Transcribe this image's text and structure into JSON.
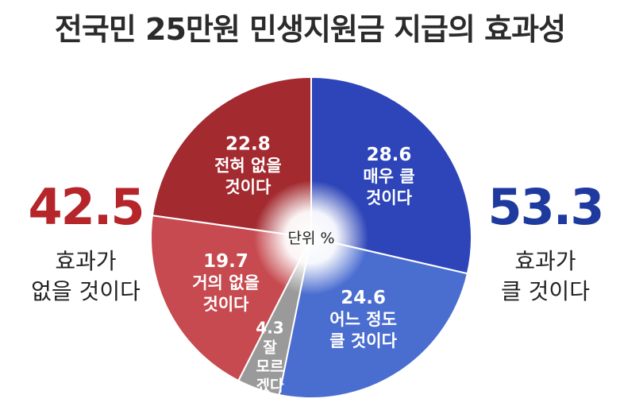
{
  "title": "전국민 25만원 민생지원금 지급의 효과성",
  "unit_label": "단위 %",
  "left_summary": {
    "value": "42.5",
    "caption_line1": "효과가",
    "caption_line2": "없을 것이다"
  },
  "right_summary": {
    "value": "53.3",
    "caption_line1": "효과가",
    "caption_line2": "클 것이다"
  },
  "colors": {
    "very_effective": "#2d45b8",
    "somewhat_effective": "#4a6dd0",
    "dont_know": "#9a9a9a",
    "hardly_effective": "#c64a4f",
    "not_effective": "#a32a2f",
    "red_accent": "#b5252a",
    "blue_accent": "#1f3a9e"
  },
  "chart_data": {
    "type": "pie",
    "title": "전국민 25만원 민생지원금 지급의 효과성",
    "unit": "%",
    "slices": [
      {
        "value": 28.6,
        "value_label": "28.6",
        "label_lines": [
          "매우 클",
          "것이다"
        ],
        "color": "#2d45b8"
      },
      {
        "value": 24.6,
        "value_label": "24.6",
        "label_lines": [
          "어느 정도",
          "클 것이다"
        ],
        "color": "#4a6dd0"
      },
      {
        "value": 4.3,
        "value_label": "4.3",
        "label_lines": [
          "잘",
          "모르",
          "겠다"
        ],
        "color": "#9a9a9a"
      },
      {
        "value": 19.7,
        "value_label": "19.7",
        "label_lines": [
          "거의 없을",
          "것이다"
        ],
        "color": "#c64a4f"
      },
      {
        "value": 22.8,
        "value_label": "22.8",
        "label_lines": [
          "전혀 없을",
          "것이다"
        ],
        "color": "#a32a2f"
      }
    ]
  }
}
